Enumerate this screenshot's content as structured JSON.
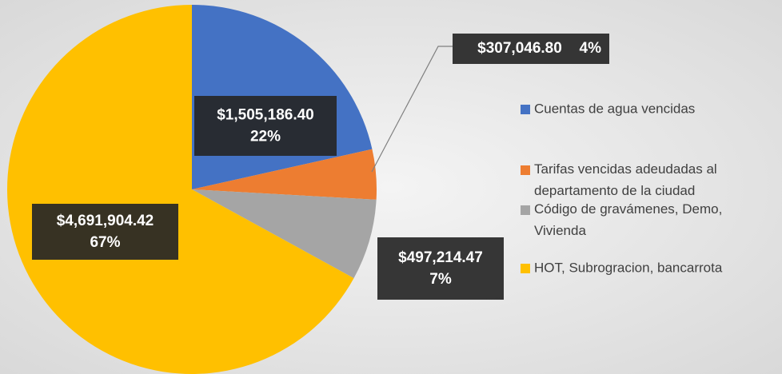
{
  "chart_data": {
    "type": "pie",
    "categories": [
      "Cuentas de agua vencidas",
      "Tarifas vencidas adeudadas al departamento de la ciudad",
      "Código de gravámenes, Demo, Vivienda",
      "HOT, Subrogracion, bancarrota"
    ],
    "values": [
      1505186.4,
      307046.8,
      497214.47,
      4691904.42
    ],
    "value_labels": [
      "$1,505,186.40",
      "$307,046.80",
      "$497,214.47",
      "$4,691,904.42"
    ],
    "percentages": [
      22,
      4,
      7,
      67
    ],
    "percentage_labels": [
      "22%",
      "4%",
      "7%",
      "67%"
    ],
    "colors": [
      "#4472c4",
      "#ed7d31",
      "#a5a5a5",
      "#ffc000"
    ],
    "legend": "right"
  }
}
